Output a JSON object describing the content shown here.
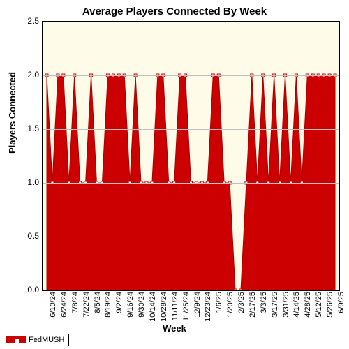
{
  "chart": {
    "type": "area",
    "title": "Average Players Connected By Week",
    "title_fontsize": 15,
    "xlabel": "Week",
    "ylabel": "Players Connected",
    "label_fontsize": 13,
    "ylim": [
      0.0,
      2.5
    ],
    "ytick_step": 0.5,
    "yticks": [
      "0.0",
      "0.5",
      "1.0",
      "1.5",
      "2.0",
      "2.5"
    ],
    "background_color": "#ffffff",
    "plot_background_color": "#fefce8",
    "grid_color": "#c0c0c0",
    "series_color": "#cc0000",
    "marker_fill": "#ffffff",
    "marker_stroke": "#cc0000",
    "marker_size": 4,
    "categories": [
      "6/10/24",
      "6/24/24",
      "7/8/24",
      "7/22/24",
      "8/5/24",
      "8/19/24",
      "9/2/24",
      "9/16/24",
      "9/30/24",
      "10/14/24",
      "10/28/24",
      "11/11/24",
      "11/25/24",
      "12/9/24",
      "12/23/24",
      "1/6/25",
      "1/20/25",
      "2/3/25",
      "2/17/25",
      "3/3/25",
      "3/17/25",
      "3/31/25",
      "4/14/25",
      "4/28/25",
      "5/12/25",
      "5/26/25",
      "6/9/25"
    ],
    "x_tick_every": 1,
    "values": [
      2,
      1,
      2,
      2,
      1,
      2,
      1,
      1,
      2,
      1,
      1,
      2,
      2,
      2,
      2,
      1,
      2,
      1,
      1,
      1,
      2,
      2,
      1,
      1,
      2,
      2,
      1,
      1,
      1,
      1,
      2,
      2,
      1,
      1,
      0,
      0,
      1,
      2,
      1,
      2,
      1,
      2,
      1,
      2,
      1,
      2,
      1,
      2,
      2,
      2,
      2,
      2,
      2
    ]
  },
  "legend": {
    "items": [
      "FedMUSH"
    ]
  }
}
